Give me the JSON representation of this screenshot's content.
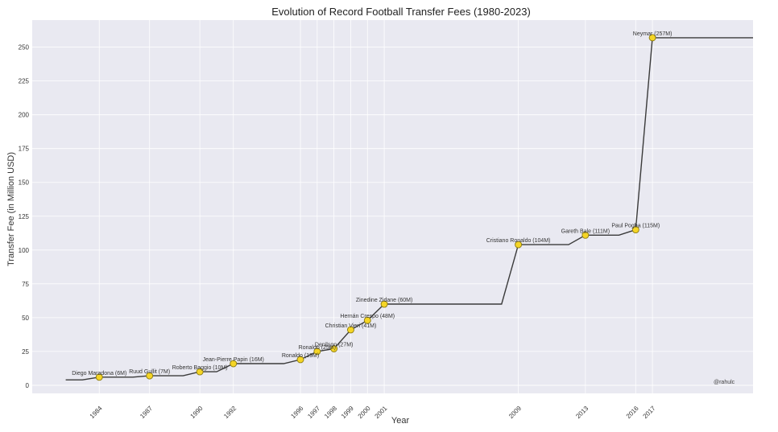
{
  "chart_data": {
    "type": "line",
    "title": "Evolution of Record Football Transfer Fees (1980-2023)",
    "xlabel": "Year",
    "ylabel": "Transfer Fee (in Million USD)",
    "xlim": [
      1980,
      2023
    ],
    "ylim": [
      -6,
      270
    ],
    "yticks": [
      0,
      25,
      50,
      75,
      100,
      125,
      150,
      175,
      200,
      225,
      250
    ],
    "xticks": [
      1984,
      1987,
      1990,
      1992,
      1996,
      1997,
      1998,
      1999,
      2000,
      2001,
      2009,
      2013,
      2016,
      2017
    ],
    "grid": true,
    "line": {
      "x": [
        1982,
        1983,
        1984,
        1985,
        1986,
        1987,
        1988,
        1989,
        1990,
        1991,
        1992,
        1993,
        1994,
        1995,
        1996,
        1997,
        1998,
        1999,
        2000,
        2001,
        2002,
        2003,
        2004,
        2005,
        2006,
        2007,
        2008,
        2009,
        2010,
        2011,
        2012,
        2013,
        2014,
        2015,
        2016,
        2017,
        2018,
        2019,
        2020,
        2021,
        2022,
        2023
      ],
      "y": [
        4,
        4,
        6,
        6,
        6,
        7,
        7,
        7,
        10,
        10,
        16,
        16,
        16,
        16,
        19,
        25,
        27,
        41,
        48,
        60,
        60,
        60,
        60,
        60,
        60,
        60,
        60,
        104,
        104,
        104,
        104,
        111,
        111,
        111,
        115,
        257,
        257,
        257,
        257,
        257,
        257,
        257
      ]
    },
    "points": [
      {
        "x": 1984,
        "y": 6,
        "label": "Diego Maradona (6M)"
      },
      {
        "x": 1987,
        "y": 7,
        "label": "Ruud Gullit (7M)"
      },
      {
        "x": 1990,
        "y": 10,
        "label": "Roberto Baggio (10M)"
      },
      {
        "x": 1992,
        "y": 16,
        "label": "Jean-Pierre Papin (16M)"
      },
      {
        "x": 1996,
        "y": 19,
        "label": "Ronaldo (19M)"
      },
      {
        "x": 1997,
        "y": 25,
        "label": "Ronaldo (25M)"
      },
      {
        "x": 1998,
        "y": 27,
        "label": "Denilson (27M)"
      },
      {
        "x": 1999,
        "y": 41,
        "label": "Christian Vieri (41M)"
      },
      {
        "x": 2000,
        "y": 48,
        "label": "Hernán Crespo (48M)"
      },
      {
        "x": 2001,
        "y": 60,
        "label": "Zinedine Zidane (60M)"
      },
      {
        "x": 2009,
        "y": 104,
        "label": "Cristiano Ronaldo (104M)"
      },
      {
        "x": 2013,
        "y": 111,
        "label": "Gareth Bale (111M)"
      },
      {
        "x": 2016,
        "y": 115,
        "label": "Paul Pogba (115M)"
      },
      {
        "x": 2017,
        "y": 257,
        "label": "Neymar (257M)"
      }
    ],
    "credit": "@rahulc",
    "colors": {
      "line": "#3a3a3a",
      "marker_fill": "#f5d526",
      "marker_edge": "#8a7a10",
      "plot_bg": "#e9e9f1",
      "grid": "#ffffff"
    }
  }
}
